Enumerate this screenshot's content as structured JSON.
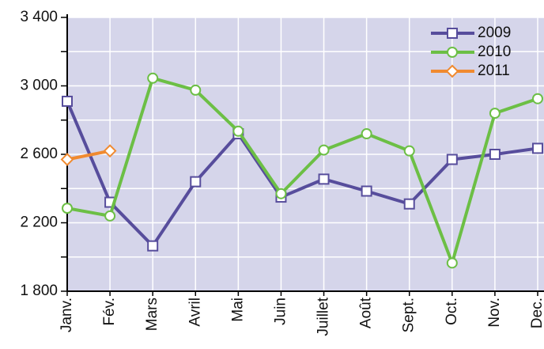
{
  "chart_data": {
    "type": "line",
    "categories": [
      "Janv.",
      "Fév.",
      "Mars",
      "Avril",
      "Mai",
      "Juin",
      "Juillet",
      "Août",
      "Sept.",
      "Oct.",
      "Nov.",
      "Dec."
    ],
    "series": [
      {
        "name": "2009",
        "color": "#574d9c",
        "marker": "square",
        "values": [
          2910,
          2320,
          2065,
          2440,
          2720,
          2350,
          2455,
          2385,
          2310,
          2570,
          2600,
          2635
        ]
      },
      {
        "name": "2010",
        "color": "#6cbf45",
        "marker": "circle",
        "values": [
          2285,
          2240,
          3045,
          2975,
          2735,
          2370,
          2625,
          2720,
          2620,
          1965,
          2840,
          2925
        ]
      },
      {
        "name": "2011",
        "color": "#f08a30",
        "marker": "diamond",
        "values": [
          2570,
          2620,
          null,
          null,
          null,
          null,
          null,
          null,
          null,
          null,
          null,
          null
        ]
      }
    ],
    "ylim": [
      1800,
      3400
    ],
    "yticks": [
      {
        "value": 1800,
        "label": "1 800"
      },
      {
        "value": 2200,
        "label": "2 200"
      },
      {
        "value": 2600,
        "label": "2 600"
      },
      {
        "value": 3000,
        "label": "3 000"
      },
      {
        "value": 3400,
        "label": "3 400"
      }
    ],
    "yminor_ticks": [
      2000,
      2400,
      2800,
      3200
    ],
    "grid": true,
    "legend": "top-right"
  }
}
